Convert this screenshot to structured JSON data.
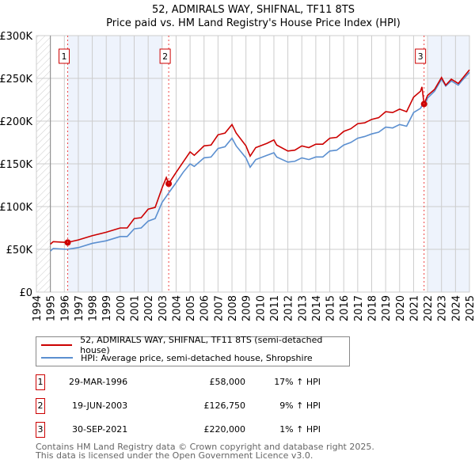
{
  "chart_data": {
    "type": "line",
    "title": "52, ADMIRALS WAY, SHIFNAL, TF11 8TS",
    "subtitle": "Price paid vs. HM Land Registry's House Price Index (HPI)",
    "xlim": [
      1994,
      2025
    ],
    "ylim": [
      0,
      300000
    ],
    "y_ticks": [
      "£0",
      "£50K",
      "£100K",
      "£150K",
      "£200K",
      "£250K",
      "£300K"
    ],
    "x_ticks": [
      "1994",
      "1995",
      "1996",
      "1997",
      "1998",
      "1999",
      "2000",
      "2001",
      "2002",
      "2003",
      "2004",
      "2005",
      "2006",
      "2007",
      "2008",
      "2009",
      "2010",
      "2011",
      "2012",
      "2013",
      "2014",
      "2015",
      "2016",
      "2017",
      "2018",
      "2019",
      "2020",
      "2021",
      "2022",
      "2023",
      "2024",
      "2025"
    ],
    "grid": true,
    "colors": {
      "property": "#cc0000",
      "hpi": "#5b8fd0"
    },
    "x": [
      1995.0,
      1995.2,
      1996.2,
      1997,
      1998,
      1999,
      2000,
      2000.5,
      2001,
      2001.5,
      2002,
      2002.5,
      2003,
      2003.3,
      2003.47,
      2004,
      2004.5,
      2005,
      2005.3,
      2006,
      2006.5,
      2007,
      2007.5,
      2008,
      2008.3,
      2009,
      2009.3,
      2009.7,
      2010.5,
      2011,
      2011.2,
      2012,
      2012.5,
      2013,
      2013.5,
      2014,
      2014.5,
      2015,
      2015.5,
      2016,
      2016.5,
      2017,
      2017.5,
      2018,
      2018.5,
      2019,
      2019.5,
      2020,
      2020.5,
      2021,
      2021.5,
      2021.6,
      2021.75,
      2022,
      2022.5,
      2023,
      2023.3,
      2023.7,
      2024.2,
      2024.5,
      2025
    ],
    "series": [
      {
        "name": "52, ADMIRALS WAY, SHIFNAL, TF11 8TS (semi-detached house)",
        "values": [
          56,
          59,
          58,
          61,
          66,
          70,
          75,
          75,
          86,
          87,
          97,
          99,
          122,
          134,
          126.75,
          140,
          152,
          164,
          160,
          171,
          172,
          184,
          186,
          196,
          186,
          171,
          159,
          169,
          174,
          178,
          172,
          165,
          166,
          171,
          169,
          173,
          173,
          180,
          181,
          188,
          191,
          197,
          198,
          202,
          204,
          211,
          210,
          214,
          211,
          228,
          235,
          240,
          220,
          230,
          237,
          251,
          242,
          249,
          244,
          250,
          260
        ]
      },
      {
        "name": "HPI: Average price, semi-detached house, Shropshire",
        "values": [
          48,
          51,
          50,
          52,
          57,
          60,
          65,
          65,
          74,
          75,
          83,
          86,
          105,
          112,
          116,
          128,
          140,
          150,
          147,
          157,
          158,
          168,
          170,
          180,
          171,
          157,
          146,
          155,
          160,
          163,
          158,
          152,
          153,
          157,
          155,
          158,
          158,
          165,
          166,
          172,
          175,
          180,
          182,
          185,
          187,
          193,
          192,
          196,
          194,
          210,
          215,
          218,
          218,
          227,
          235,
          249,
          241,
          247,
          242,
          248,
          257
        ]
      }
    ],
    "value_unit": "£ thousands",
    "sales": [
      {
        "label": "1",
        "x": 1996.24,
        "value": 58000,
        "date": "29-MAR-1996",
        "price": "£58,000",
        "hpi": "17% ↑ HPI"
      },
      {
        "label": "2",
        "x": 2003.47,
        "value": 126750,
        "date": "19-JUN-2003",
        "price": "£126,750",
        "hpi": "9% ↑ HPI"
      },
      {
        "label": "3",
        "x": 2021.75,
        "value": 220000,
        "date": "30-SEP-2021",
        "price": "£220,000",
        "hpi": "1% ↑ HPI"
      }
    ]
  },
  "footer": {
    "line1": "Contains HM Land Registry data © Crown copyright and database right 2025.",
    "line2": "This data is licensed under the Open Government Licence v3.0."
  }
}
